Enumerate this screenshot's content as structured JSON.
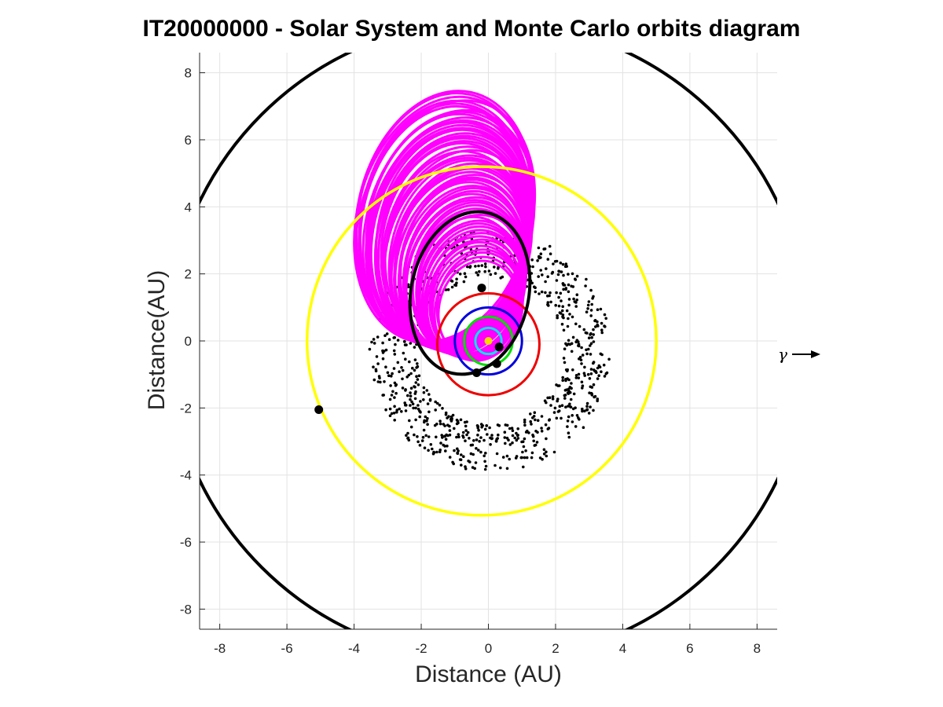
{
  "chart_data": {
    "type": "scatter",
    "title": "IT20000000 - Solar System and Monte Carlo orbits diagram",
    "xlabel": "Distance (AU)",
    "ylabel": "Distance(AU)",
    "xlim": [
      -8.6,
      8.6
    ],
    "ylim": [
      -8.6,
      8.6
    ],
    "xticks": [
      -8,
      -6,
      -4,
      -2,
      0,
      2,
      4,
      6,
      8
    ],
    "yticks": [
      -8,
      -6,
      -4,
      -2,
      0,
      2,
      4,
      6,
      8
    ],
    "grid": true,
    "direction_marker": "γ",
    "sun": {
      "x": 0,
      "y": 0,
      "color": "#ffd700"
    },
    "planet_orbits": [
      {
        "cx": 0.0,
        "cy": 0.0,
        "rx": 0.39,
        "ry": 0.39,
        "color": "#00e5ee",
        "width": 3
      },
      {
        "cx": 0.0,
        "cy": 0.0,
        "rx": 0.72,
        "ry": 0.72,
        "color": "#00dd00",
        "width": 3
      },
      {
        "cx": 0.0,
        "cy": 0.0,
        "rx": 1.0,
        "ry": 1.0,
        "color": "#0000dd",
        "width": 3
      },
      {
        "cx": 0.0,
        "cy": -0.1,
        "rx": 1.52,
        "ry": 1.52,
        "color": "#ee0000",
        "width": 3
      },
      {
        "cx": -0.2,
        "cy": 0.0,
        "rx": 5.2,
        "ry": 5.2,
        "color": "#ffff00",
        "width": 3.5
      },
      {
        "cx": 0.0,
        "cy": 0.0,
        "rx": 9.55,
        "ry": 9.55,
        "color": "#000000",
        "width": 4
      }
    ],
    "planet_positions": [
      {
        "x": 0.32,
        "y": -0.18
      },
      {
        "x": 0.25,
        "y": -0.68
      },
      {
        "x": -0.35,
        "y": -0.95
      },
      {
        "x": -0.2,
        "y": 1.58
      },
      {
        "x": -5.05,
        "y": -2.05
      }
    ],
    "nominal_orbit": {
      "cx": -0.55,
      "cy": 1.43,
      "rx": 1.75,
      "ry": 2.45,
      "rotation_deg": 12,
      "color": "#000000"
    },
    "monte_carlo_orbits": {
      "color": "#ff00ff",
      "count": 60,
      "cx_range": [
        -1.4,
        -0.2
      ],
      "cy_range": [
        0.9,
        3.7
      ],
      "rx_range": [
        1.2,
        2.6
      ],
      "ry_range": [
        1.5,
        3.8
      ],
      "rotation_deg_range": [
        8,
        18
      ]
    },
    "asteroid_belt": {
      "color": "#000000",
      "count": 900,
      "r_min": 2.2,
      "r_max": 3.6,
      "center": [
        0.05,
        -0.3
      ]
    }
  }
}
